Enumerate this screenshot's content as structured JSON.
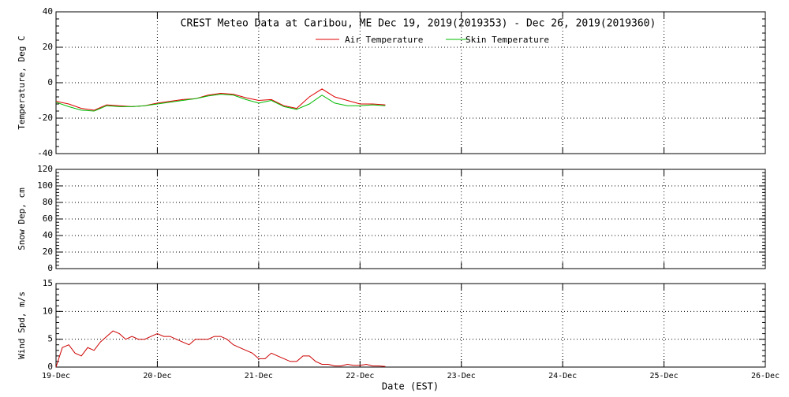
{
  "chart_data": [
    {
      "type": "line",
      "title": "CREST Meteo Data at Caribou, ME   Dec 19, 2019(2019353) - Dec 26, 2019(2019360)",
      "ylabel": "Temperature, Deg C",
      "ylim": [
        -40,
        40
      ],
      "yticks": [
        -40,
        -20,
        0,
        20,
        40
      ],
      "grid": true,
      "x": [
        0,
        0.125,
        0.25,
        0.375,
        0.5,
        0.625,
        0.75,
        0.875,
        1,
        1.125,
        1.25,
        1.375,
        1.5,
        1.625,
        1.75,
        1.875,
        2,
        2.125,
        2.25,
        2.375,
        2.5,
        2.625,
        2.75,
        2.875,
        3,
        3.125,
        3.25
      ],
      "series": [
        {
          "name": "Air Temperature",
          "color": "#dd0000",
          "values": [
            -10.5,
            -12,
            -14.5,
            -15.5,
            -12.5,
            -13,
            -13.5,
            -13,
            -11.5,
            -10.5,
            -9.5,
            -9,
            -7,
            -6,
            -6.5,
            -8.5,
            -10,
            -9.5,
            -13,
            -14.5,
            -8,
            -3.5,
            -8,
            -10,
            -12,
            -12,
            -12.5
          ]
        },
        {
          "name": "Skin Temperature",
          "color": "#00bb00",
          "values": [
            -11,
            -13.5,
            -15.5,
            -16,
            -13,
            -13.5,
            -13.5,
            -13,
            -12,
            -11,
            -10,
            -9,
            -7.5,
            -6.5,
            -7,
            -9.5,
            -11.5,
            -10,
            -13.5,
            -15,
            -12,
            -7,
            -11.5,
            -13,
            -13,
            -12.5,
            -13
          ]
        }
      ]
    },
    {
      "type": "line",
      "ylabel": "Snow Dep, cm",
      "ylim": [
        0,
        120
      ],
      "yticks": [
        0,
        20,
        40,
        60,
        80,
        100,
        120
      ],
      "grid": true,
      "series": []
    },
    {
      "type": "line",
      "ylabel": "Wind Spd, m/s",
      "xlabel": "Date (EST)",
      "xlim": [
        0,
        7
      ],
      "xticks": [
        {
          "value": 0,
          "label": "19-Dec"
        },
        {
          "value": 1,
          "label": "20-Dec"
        },
        {
          "value": 2,
          "label": "21-Dec"
        },
        {
          "value": 3,
          "label": "22-Dec"
        },
        {
          "value": 4,
          "label": "23-Dec"
        },
        {
          "value": 5,
          "label": "24-Dec"
        },
        {
          "value": 6,
          "label": "25-Dec"
        },
        {
          "value": 7,
          "label": "26-Dec"
        }
      ],
      "ylim": [
        0,
        15
      ],
      "yticks": [
        0,
        5,
        10,
        15
      ],
      "grid": true,
      "x": [
        0,
        0.0625,
        0.125,
        0.1875,
        0.25,
        0.3125,
        0.375,
        0.4375,
        0.5,
        0.5625,
        0.625,
        0.6875,
        0.75,
        0.8125,
        0.875,
        0.9375,
        1,
        1.0625,
        1.125,
        1.1875,
        1.25,
        1.3125,
        1.375,
        1.4375,
        1.5,
        1.5625,
        1.625,
        1.6875,
        1.75,
        1.8125,
        1.875,
        1.9375,
        2,
        2.0625,
        2.125,
        2.1875,
        2.25,
        2.3125,
        2.375,
        2.4375,
        2.5,
        2.5625,
        2.625,
        2.6875,
        2.75,
        2.8125,
        2.875,
        2.9375,
        3,
        3.0625,
        3.125,
        3.1875,
        3.25
      ],
      "series": [
        {
          "name": "Wind Speed",
          "color": "#cc0000",
          "values": [
            0,
            3.5,
            4,
            2.5,
            2,
            3.5,
            3,
            4.5,
            5.5,
            6.5,
            6,
            5,
            5.5,
            5,
            5,
            5.5,
            6,
            5.5,
            5.5,
            5,
            4.5,
            4,
            5,
            5,
            5,
            5.5,
            5.5,
            5,
            4,
            3.5,
            3,
            2.5,
            1.5,
            1.5,
            2.5,
            2,
            1.5,
            1,
            1,
            2,
            2,
            1,
            0.5,
            0.5,
            0.2,
            0.2,
            0.5,
            0.3,
            0.3,
            0.5,
            0.2,
            0.2,
            0.1
          ]
        }
      ]
    }
  ]
}
